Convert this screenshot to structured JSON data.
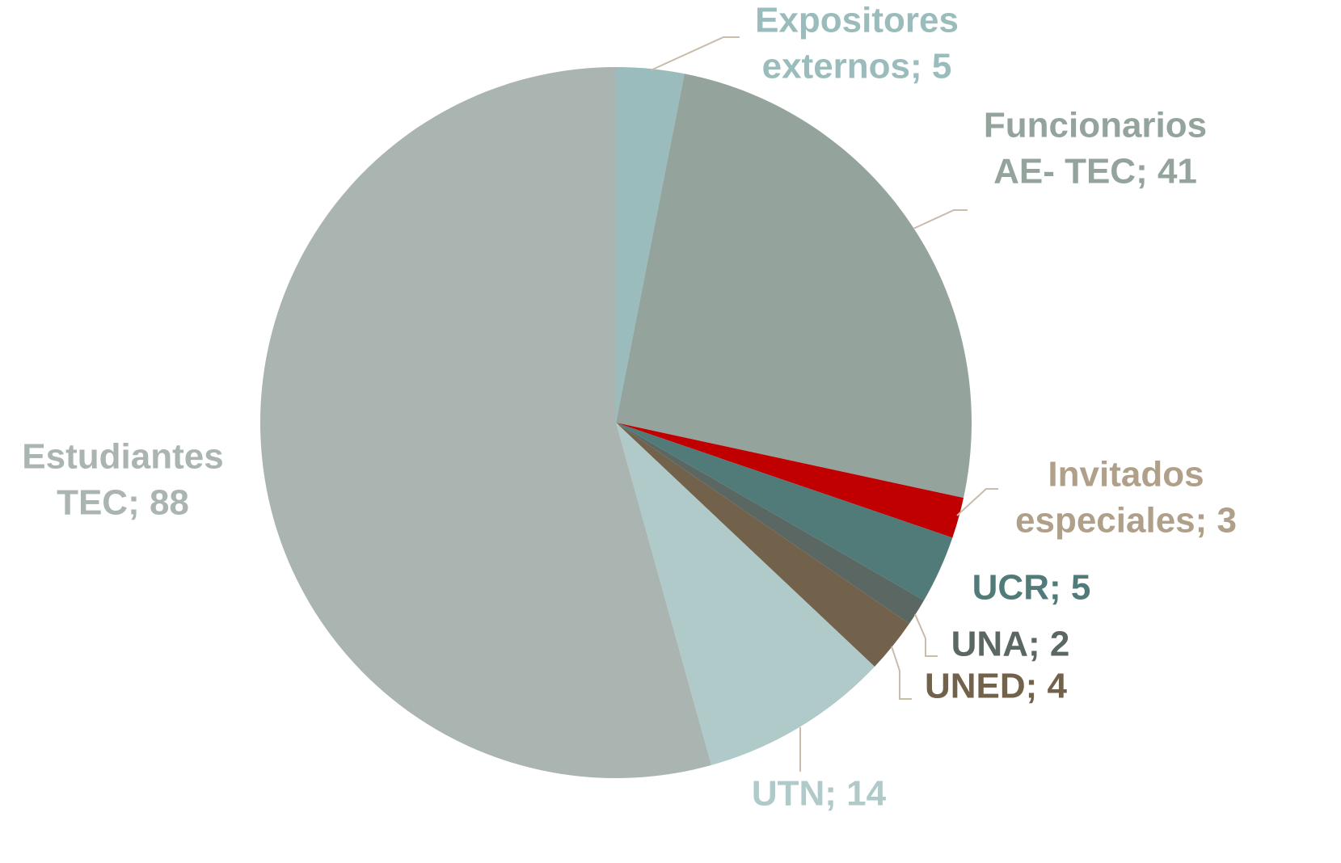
{
  "chart_data": {
    "type": "pie",
    "categories": [
      "Expositores externos",
      "Funcionarios AE- TEC",
      "Invitados especiales",
      "UCR",
      "UNA",
      "UNED",
      "UTN",
      "Estudiantes TEC"
    ],
    "values": [
      5,
      41,
      3,
      5,
      2,
      4,
      14,
      88
    ],
    "value_labels": [
      [
        "Expositores",
        "externos; 5"
      ],
      [
        "Funcionarios",
        "AE- TEC; 41"
      ],
      [
        "Invitados",
        "especiales; 3"
      ],
      [
        "UCR; 5"
      ],
      [
        "UNA; 2"
      ],
      [
        "UNED; 4"
      ],
      [
        "UTN; 14"
      ],
      [
        "Estudiantes",
        "TEC; 88"
      ]
    ],
    "colors": [
      "#9bbcbc",
      "#94a39b",
      "#c00000",
      "#517b79",
      "#5a6762",
      "#73624b",
      "#b0c9c9",
      "#aab4b0"
    ],
    "label_colors": [
      "#9bbcbc",
      "#94a39b",
      "#b0a08a",
      "#517b79",
      "#5a6762",
      "#73624b",
      "#b0c9c9",
      "#aab4b0"
    ]
  }
}
